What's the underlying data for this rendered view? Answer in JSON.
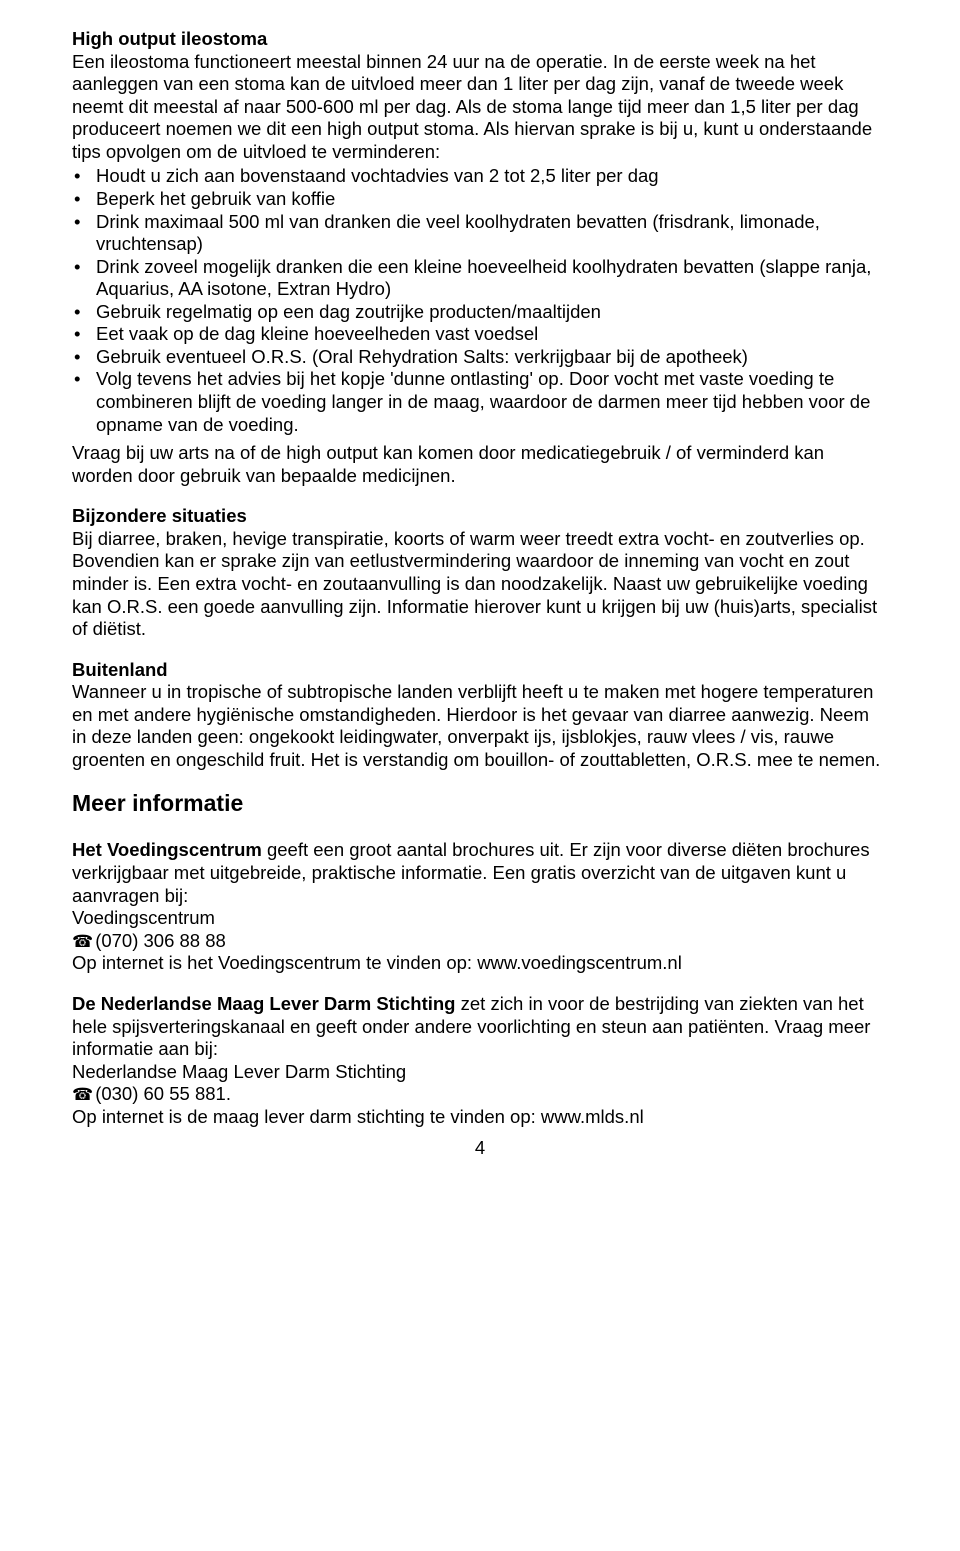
{
  "section1": {
    "title": "High output ileostoma",
    "p1": "Een ileostoma functioneert meestal binnen 24 uur na de operatie. In de eerste week na het aanleggen van een stoma kan de uitvloed meer dan 1 liter per dag zijn, vanaf de tweede week neemt dit meestal af naar 500-600 ml per dag. Als de stoma lange tijd meer dan 1,5 liter per dag produceert noemen we dit een high output stoma. Als hiervan sprake is bij u, kunt u onderstaande tips opvolgen om de uitvloed te verminderen:",
    "bullets": [
      "Houdt u zich aan bovenstaand vochtadvies van 2 tot 2,5 liter per dag",
      "Beperk het gebruik van koffie",
      "Drink maximaal 500 ml van dranken die veel koolhydraten bevatten (frisdrank, limonade, vruchtensap)",
      "Drink zoveel mogelijk dranken die een kleine hoeveelheid koolhydraten bevatten (slappe ranja, Aquarius, AA isotone, Extran Hydro)",
      "Gebruik regelmatig op een dag zoutrijke producten/maaltijden",
      "Eet vaak op de dag kleine hoeveelheden vast voedsel",
      "Gebruik eventueel O.R.S. (Oral Rehydration Salts: verkrijgbaar bij de apotheek)",
      "Volg tevens het advies bij het kopje 'dunne ontlasting' op. Door vocht met vaste voeding te combineren blijft de voeding langer in de maag, waardoor de darmen meer tijd hebben voor de opname van de voeding."
    ],
    "p2": "Vraag bij uw arts na of de high output kan komen door medicatiegebruik / of verminderd kan worden door gebruik van bepaalde medicijnen."
  },
  "section2": {
    "title": "Bijzondere situaties",
    "p1": "Bij diarree, braken, hevige transpiratie, koorts of warm weer treedt extra vocht- en zoutverlies op. Bovendien kan er sprake zijn van eetlustvermindering waardoor de inneming van vocht en zout minder is. Een extra vocht- en zoutaanvulling is dan noodzakelijk. Naast uw gebruikelijke voeding kan O.R.S. een goede aanvulling zijn. Informatie hierover kunt u krijgen bij uw (huis)arts, specialist of diëtist."
  },
  "section3": {
    "title": "Buitenland",
    "p1": "Wanneer u in tropische of subtropische landen verblijft heeft u te maken met hogere temperaturen en met andere hygiënische omstandigheden. Hierdoor is het gevaar van diarree aanwezig. Neem in deze landen geen: ongekookt leidingwater, onverpakt ijs, ijsblokjes, rauw vlees / vis, rauwe groenten en ongeschild fruit. Het is verstandig om bouillon- of zouttabletten, O.R.S. mee te nemen."
  },
  "more_info": {
    "heading": "Meer informatie",
    "vc_bold": "Het Voedingscentrum",
    "vc_text": " geeft een groot aantal brochures uit. Er zijn voor diverse diëten brochures verkrijgbaar met uitgebreide, praktische informatie. Een gratis overzicht van de uitgaven kunt u aanvragen bij:",
    "vc_name": "Voedingscentrum",
    "vc_phone": "(070) 306 88 88",
    "vc_url_line": "Op internet is het Voedingscentrum te vinden op: www.voedingscentrum.nl",
    "mlds_bold": "De Nederlandse Maag Lever Darm Stichting",
    "mlds_text": " zet zich in voor de bestrijding van ziekten van het hele spijsverteringskanaal en geeft onder andere voorlichting en steun aan patiënten. Vraag meer informatie aan bij:",
    "mlds_name": "Nederlandse Maag Lever Darm Stichting",
    "mlds_phone": "(030) 60 55 881.",
    "mlds_url_line": "Op internet is de maag lever darm stichting te vinden op: www.mlds.nl"
  },
  "footer": {
    "page_number": "4"
  }
}
